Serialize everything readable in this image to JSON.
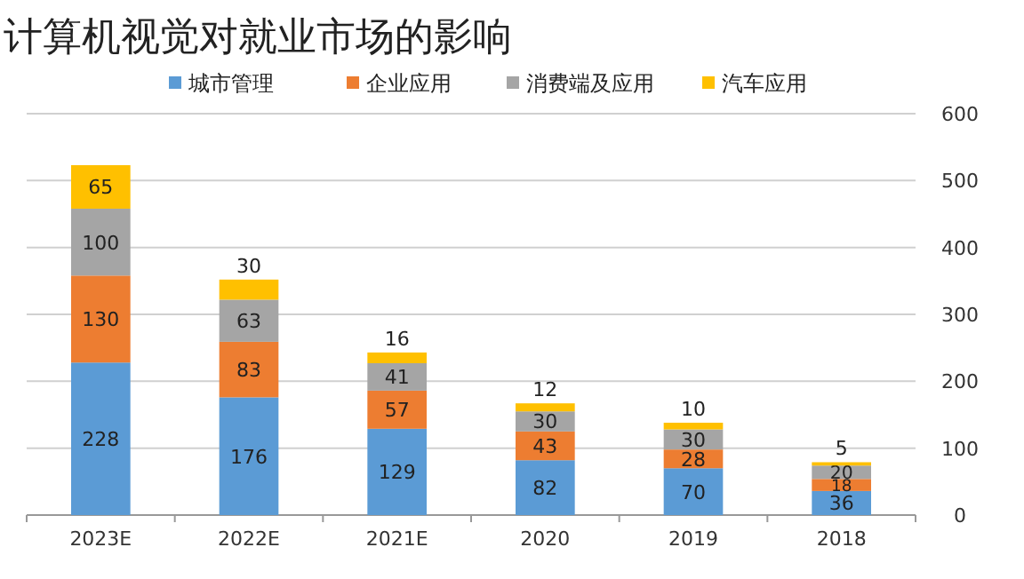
{
  "chart_data": {
    "type": "bar",
    "title": "计算机视觉对就业市场的影响",
    "stacked": true,
    "categories": [
      "2023E",
      "2022E",
      "2021E",
      "2020",
      "2019",
      "2018"
    ],
    "series": [
      {
        "name": "城市管理",
        "color": "#5b9bd5",
        "values": [
          228,
          176,
          129,
          82,
          70,
          36
        ]
      },
      {
        "name": "企业应用",
        "color": "#ed7d31",
        "values": [
          130,
          83,
          57,
          43,
          28,
          18
        ]
      },
      {
        "name": "消费端及应用",
        "color": "#a5a5a5",
        "values": [
          100,
          63,
          41,
          30,
          30,
          20
        ]
      },
      {
        "name": "汽车应用",
        "color": "#ffc000",
        "values": [
          65,
          30,
          16,
          12,
          10,
          5
        ]
      }
    ],
    "ylim": [
      0,
      600
    ],
    "yticks": [
      0,
      100,
      200,
      300,
      400,
      500,
      600
    ],
    "grid": "y",
    "legend": "top",
    "data_labels": true
  }
}
